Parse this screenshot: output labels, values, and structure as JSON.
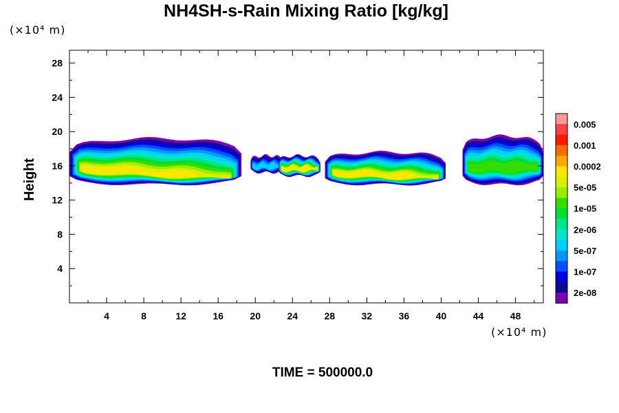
{
  "chart_data": {
    "type": "heatmap",
    "title": "NH4SH-s-Rain Mixing Ratio [kg/kg]",
    "ylabel": "Height",
    "xlabel": "",
    "x_unit_label": "(×10⁴ m)",
    "y_unit_label": "(×10⁴ m)",
    "xlim": [
      0,
      51
    ],
    "ylim": [
      0,
      29.5
    ],
    "x_ticks": [
      "4",
      "8",
      "12",
      "16",
      "20",
      "24",
      "28",
      "32",
      "36",
      "40",
      "44",
      "48"
    ],
    "y_ticks": [
      "4",
      "8",
      "12",
      "16",
      "20",
      "24",
      "28"
    ],
    "colorbar": {
      "labels": [
        "0.005",
        "0.001",
        "0.0002",
        "5e-05",
        "1e-05",
        "2e-06",
        "5e-07",
        "1e-07",
        "2e-08"
      ],
      "colors": [
        "#ff9999",
        "#ff4040",
        "#ff1a00",
        "#ff6a00",
        "#ffaa00",
        "#ffe600",
        "#d8f000",
        "#99ee00",
        "#33dd00",
        "#00dd33",
        "#00e68c",
        "#00e6cc",
        "#00d0ff",
        "#0099ff",
        "#0050ff",
        "#0000e6",
        "#0a0a96",
        "#7a00b4"
      ]
    },
    "blobs": [
      {
        "x": [
          0,
          18.5
        ],
        "y_range": [
          13.8,
          19.2
        ],
        "peak": "yellow"
      },
      {
        "x": [
          19.5,
          23
        ],
        "y_range": [
          15.2,
          17.2
        ],
        "peak": "blue"
      },
      {
        "x": [
          22.5,
          27
        ],
        "y_range": [
          14.8,
          17.2
        ],
        "peak": "yellow"
      },
      {
        "x": [
          27.5,
          40.5
        ],
        "y_range": [
          13.8,
          17.6
        ],
        "peak": "yellow"
      },
      {
        "x": [
          42.3,
          51
        ],
        "y_range": [
          13.8,
          19.5
        ],
        "peak": "green"
      }
    ],
    "grid": false
  },
  "footer": {
    "time_label": "TIME = 500000.0"
  }
}
